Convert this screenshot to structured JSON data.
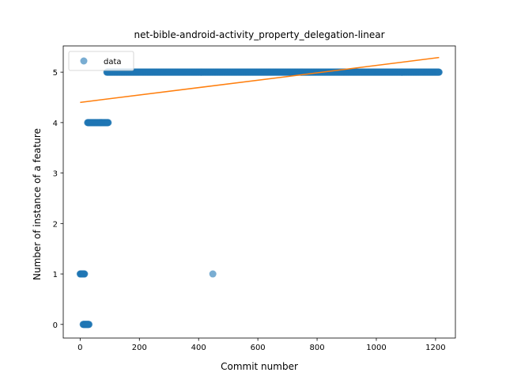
{
  "chart_data": {
    "type": "scatter",
    "title": "net-bible-android-activity_property_delegation-linear",
    "xlabel": "Commit number",
    "ylabel": "Number of instance of a feature",
    "xlim": [
      -57,
      1267
    ],
    "ylim": [
      -0.27,
      5.52
    ],
    "xticks": [
      0,
      200,
      400,
      600,
      800,
      1000,
      1200
    ],
    "yticks": [
      0,
      1,
      2,
      3,
      4,
      5
    ],
    "grid": false,
    "legend": {
      "position": "top-left",
      "entries": [
        "data"
      ]
    },
    "series": [
      {
        "name": "data",
        "kind": "points",
        "color": "#1f77b4",
        "runs": [
          {
            "x_from": 0,
            "x_to": 15,
            "step": 1,
            "y": 1
          },
          {
            "x_from": 10,
            "x_to": 30,
            "step": 1,
            "y": 0
          },
          {
            "x_from": 25,
            "x_to": 95,
            "step": 1,
            "y": 4
          },
          {
            "x_from": 90,
            "x_to": 1212,
            "step": 1,
            "y": 5
          }
        ],
        "points": [
          {
            "x": 448,
            "y": 1
          }
        ]
      },
      {
        "name": "",
        "kind": "line",
        "color": "#ff7f0e",
        "x": [
          0,
          1212
        ],
        "y": [
          4.4,
          5.29
        ]
      }
    ]
  }
}
